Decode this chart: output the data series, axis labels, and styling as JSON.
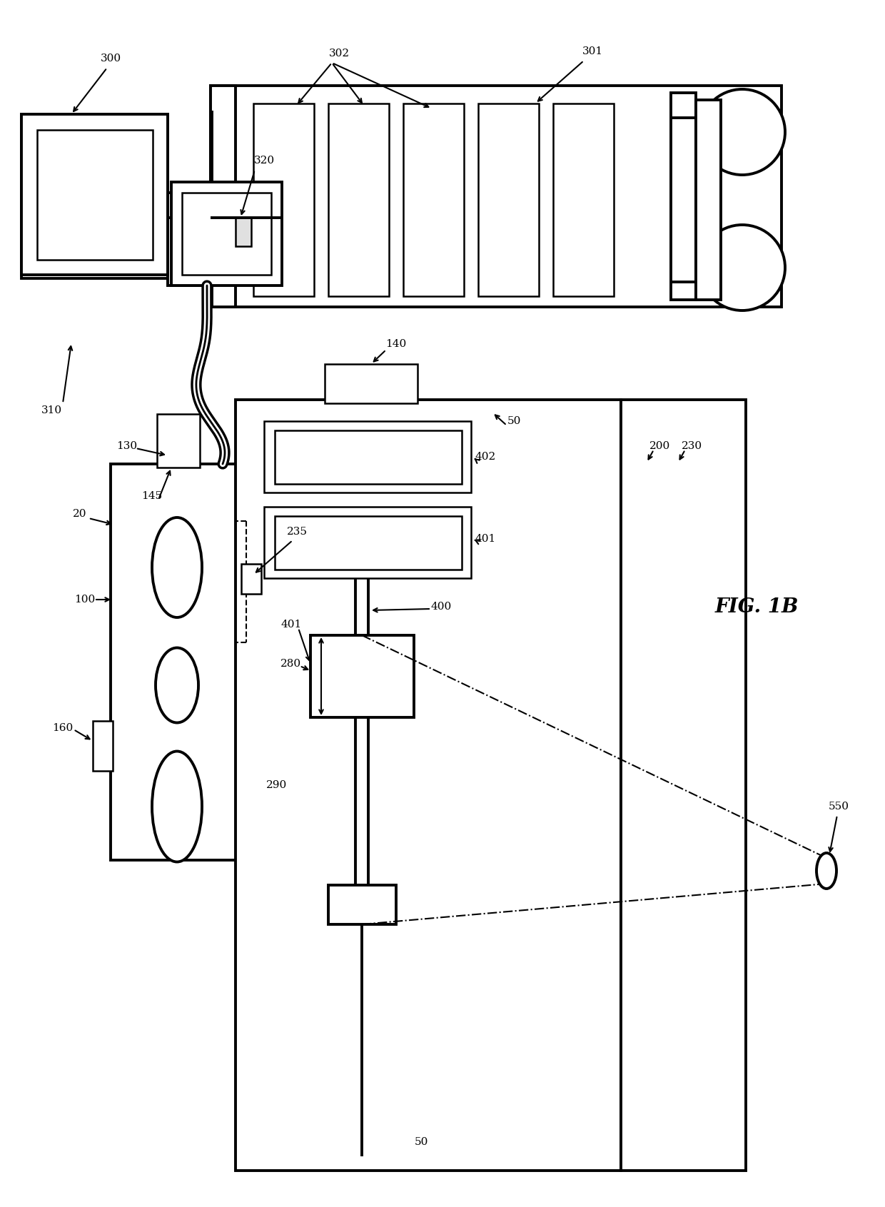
{
  "bg": "#ffffff",
  "lc": "#000000",
  "fig_label": "FIG. 1B",
  "fs": 11,
  "fs_fig": 20,
  "lw": 1.8,
  "lw_t": 2.8
}
